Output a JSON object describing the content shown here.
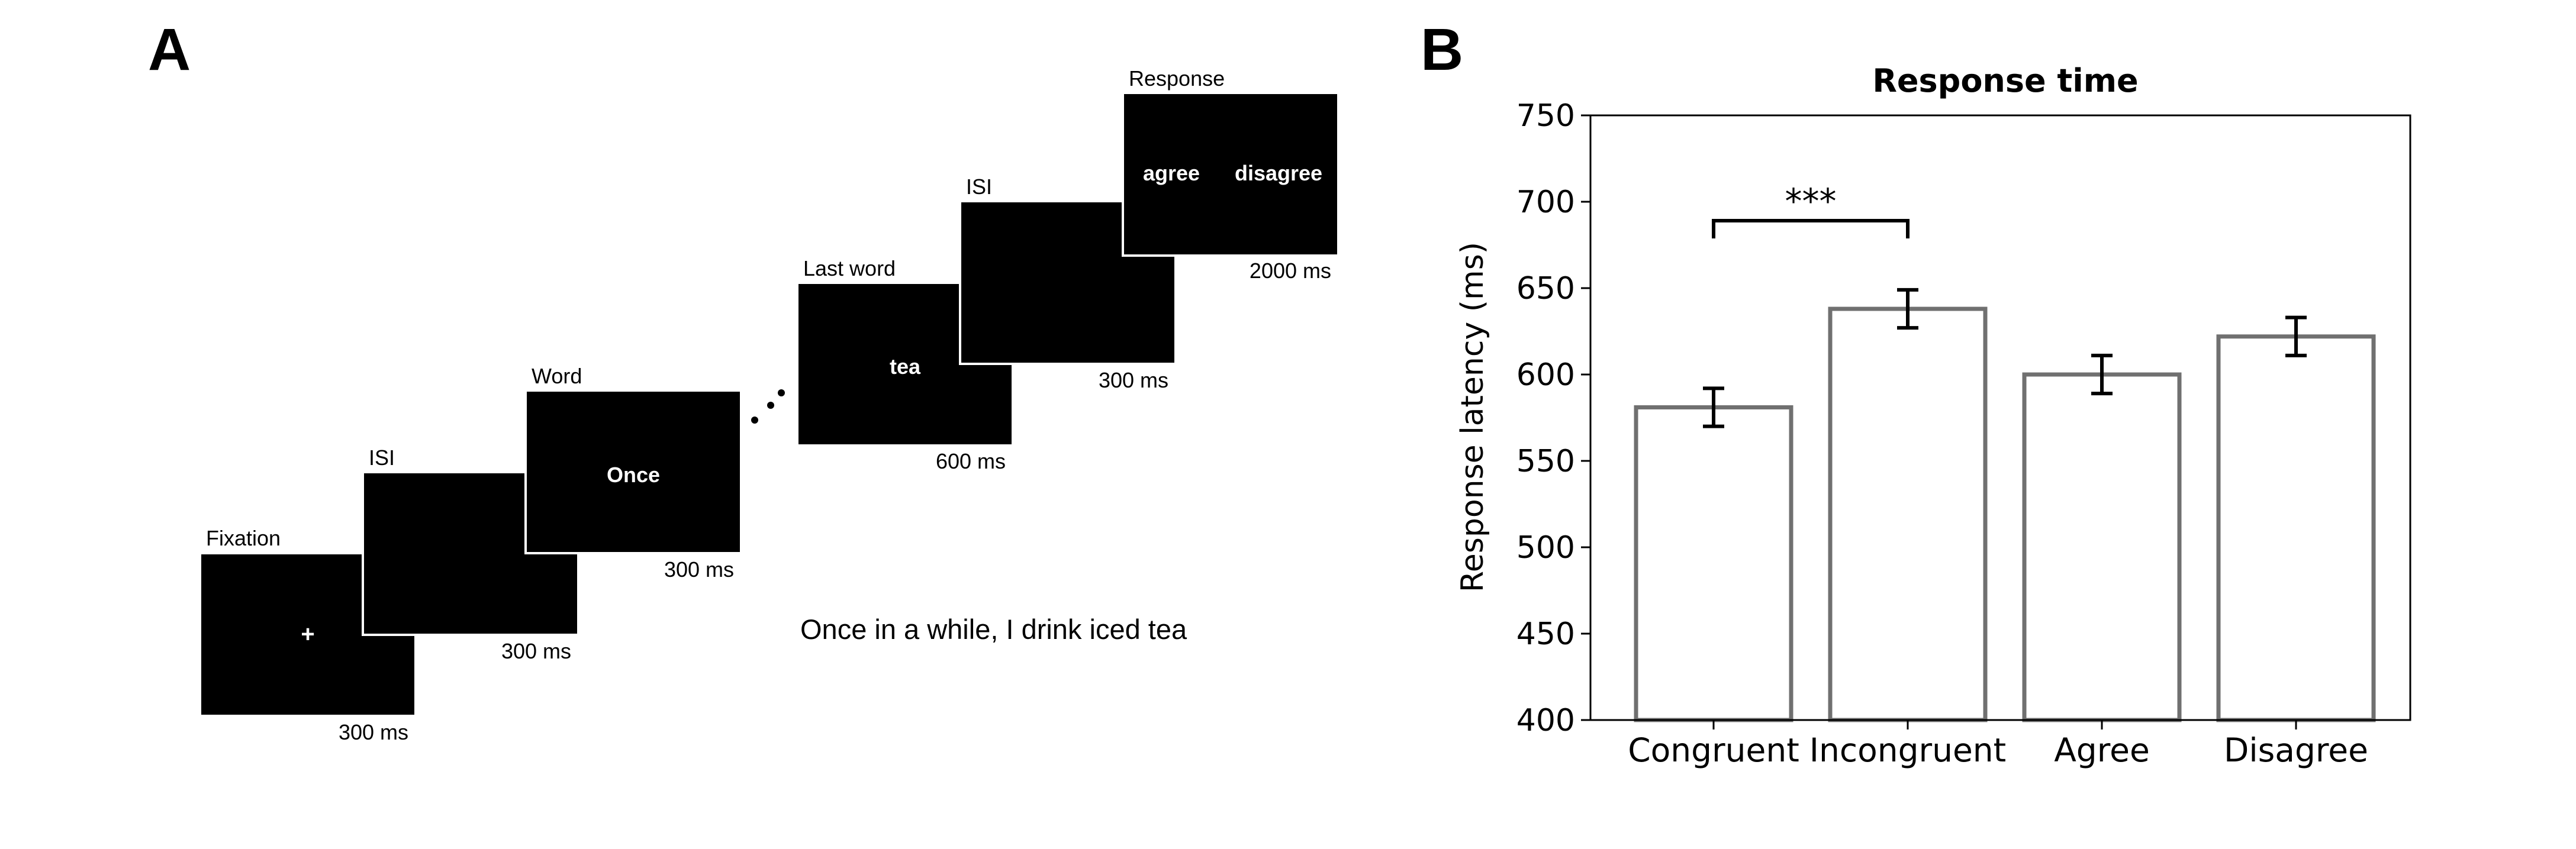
{
  "panel_a": {
    "label": "A",
    "screens": [
      {
        "title": "Fixation",
        "content": "+",
        "duration": "300 ms"
      },
      {
        "title": "ISI",
        "content": "",
        "duration": "300 ms"
      },
      {
        "title": "Word",
        "content": "Once",
        "duration": "300 ms"
      },
      {
        "title": "Last word",
        "content": "tea",
        "duration": "600 ms"
      },
      {
        "title": "ISI",
        "content": "",
        "duration": "300 ms"
      },
      {
        "title": "Response",
        "content_left": "agree",
        "content_right": "disagree",
        "duration": "2000 ms"
      }
    ],
    "sentence": "Once in a while, I drink iced tea"
  },
  "panel_b": {
    "label": "B"
  },
  "chart_data": {
    "type": "bar",
    "title": "Response time",
    "xlabel": "",
    "ylabel": "Response latency (ms)",
    "categories": [
      "Congruent",
      "Incongruent",
      "Agree",
      "Disagree"
    ],
    "values": [
      581,
      638,
      600,
      622
    ],
    "errors": [
      11,
      11,
      11,
      11
    ],
    "ylim": [
      400,
      750
    ],
    "yticks": [
      "400",
      "450",
      "500",
      "550",
      "600",
      "650",
      "700",
      "750"
    ],
    "significance": {
      "from": "Congruent",
      "to": "Incongruent",
      "label": "***"
    },
    "grid": false,
    "colors": {
      "bar_edge": "#707070",
      "bar_fill": "#ffffff",
      "error": "#000000"
    }
  }
}
